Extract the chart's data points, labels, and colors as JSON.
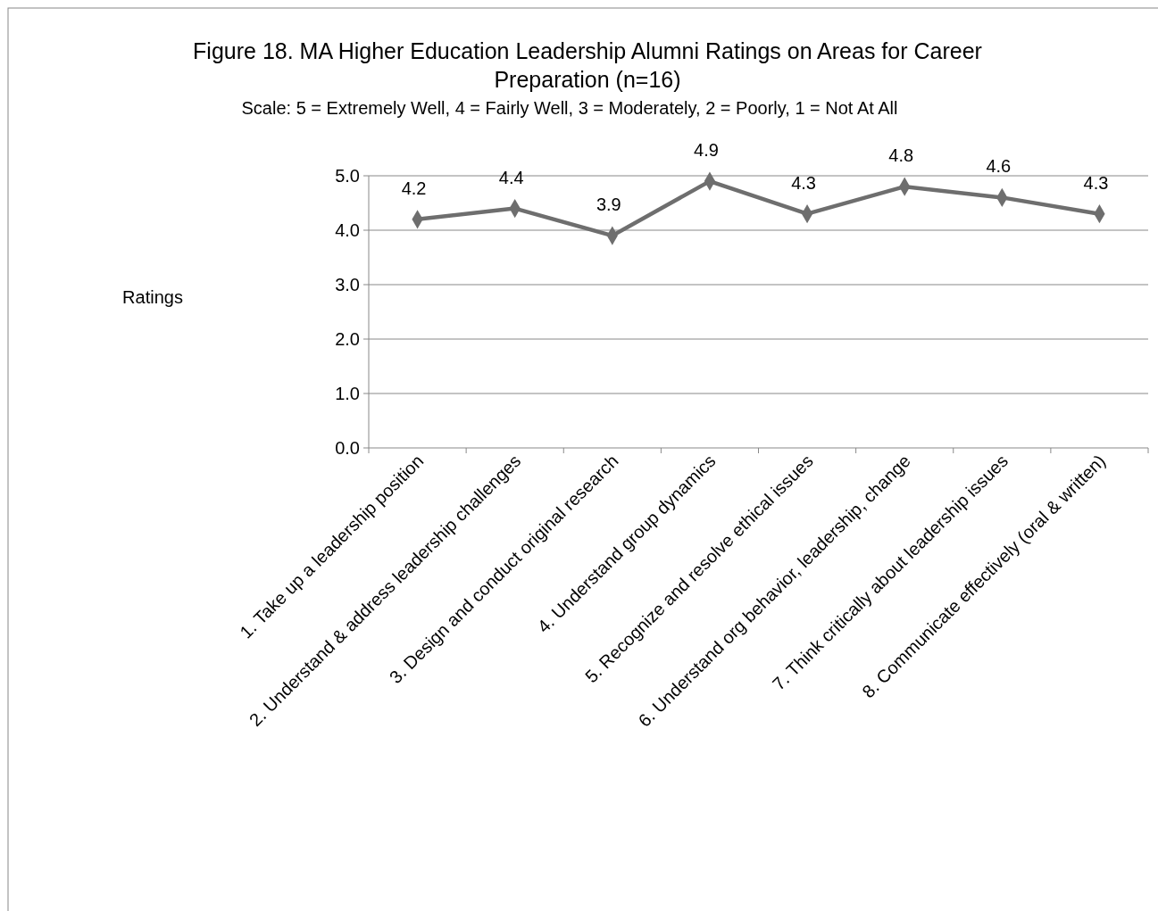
{
  "chart_data": {
    "type": "line",
    "title": "Figure 18. MA Higher Education Leadership Alumni Ratings on Areas for Career Preparation (n=16)",
    "subtitle": "Scale: 5 = Extremely Well, 4 = Fairly Well, 3 = Moderately, 2 = Poorly, 1 = Not At All",
    "ylabel": "Ratings",
    "categories": [
      "1. Take up a leadership position",
      "2. Understand & address leadership challenges",
      "3. Design and conduct original research",
      "4. Understand group dynamics",
      "5. Recognize and resolve ethical issues",
      "6. Understand org behavior, leadership, change",
      "7. Think critically about leadership issues",
      "8. Communicate effectively (oral & written)"
    ],
    "series": [
      {
        "color": "#6e6e6e",
        "values": [
          4.2,
          4.4,
          3.9,
          4.9,
          4.3,
          4.8,
          4.6,
          4.3
        ]
      }
    ],
    "ylim": [
      0,
      5
    ],
    "yticks": [
      {
        "value": 0,
        "label": "0.0"
      },
      {
        "value": 1,
        "label": "1.0"
      },
      {
        "value": 2,
        "label": "2.0"
      },
      {
        "value": 3,
        "label": "3.0"
      },
      {
        "value": 4,
        "label": "4.0"
      },
      {
        "value": 5,
        "label": "5.0"
      }
    ],
    "grid": "y",
    "marker": "diamond",
    "line_style": "solid",
    "data_labels": true
  }
}
